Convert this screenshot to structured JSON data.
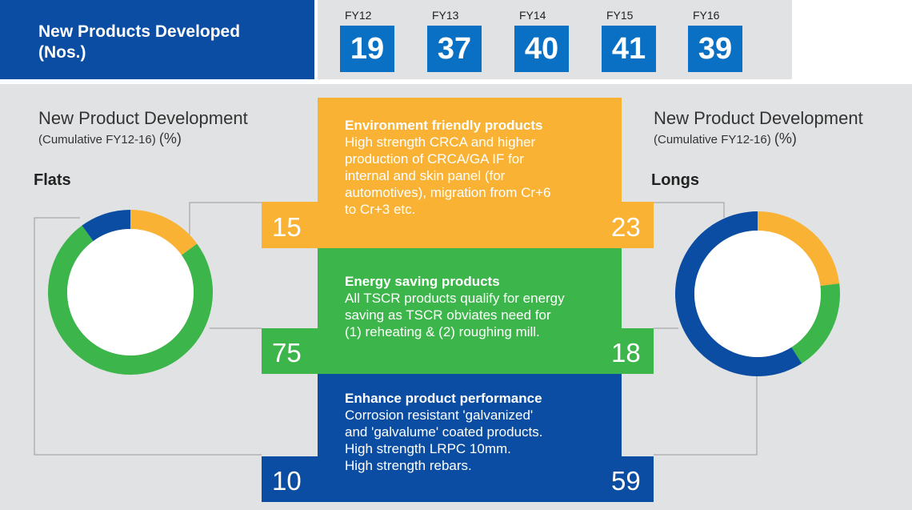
{
  "header": {
    "title_line1": "New Products Developed",
    "title_line2": "(Nos.)",
    "years": [
      {
        "label": "FY12",
        "value": "19"
      },
      {
        "label": "FY13",
        "value": "37"
      },
      {
        "label": "FY14",
        "value": "40"
      },
      {
        "label": "FY15",
        "value": "41"
      },
      {
        "label": "FY16",
        "value": "39"
      }
    ]
  },
  "left": {
    "title": "New Product Development",
    "subtitle": "(Cumulative FY12-16)",
    "unit": "(%)",
    "category": "Flats"
  },
  "right": {
    "title": "New Product Development",
    "subtitle": "(Cumulative FY12-16)",
    "unit": "(%)",
    "category": "Longs"
  },
  "bands": [
    {
      "heading": "Environment friendly products",
      "lines": [
        "High strength CRCA and higher",
        "production of CRCA/GA IF for",
        "internal and skin panel (for",
        "automotives), migration from Cr+6",
        "to Cr+3 etc."
      ],
      "flats_value": "15",
      "longs_value": "23"
    },
    {
      "heading": "Energy saving products",
      "lines": [
        "All TSCR products qualify for energy",
        "saving as TSCR obviates need for",
        "(1) reheating & (2) roughing mill."
      ],
      "flats_value": "75",
      "longs_value": "18"
    },
    {
      "heading": "Enhance product performance",
      "lines": [
        "Corrosion resistant 'galvanized'",
        "and 'galvalume' coated products.",
        "High strength LRPC 10mm.",
        "High strength rebars."
      ],
      "flats_value": "10",
      "longs_value": "59"
    }
  ],
  "chart_data": [
    {
      "type": "pie",
      "donut": true,
      "category": "Flats",
      "labels": [
        "Environment friendly products",
        "Energy saving products",
        "Enhance product performance"
      ],
      "values": [
        15,
        75,
        10
      ],
      "colors": [
        "#f9b233",
        "#3cb54a",
        "#0a4da2"
      ]
    },
    {
      "type": "pie",
      "donut": true,
      "category": "Longs",
      "labels": [
        "Environment friendly products",
        "Energy saving products",
        "Enhance product performance"
      ],
      "values": [
        23,
        18,
        59
      ],
      "colors": [
        "#f9b233",
        "#3cb54a",
        "#0a4da2"
      ]
    }
  ],
  "colors": {
    "header_blue": "#0a4da2",
    "year_box_blue": "#0a70c3",
    "orange": "#f9b233",
    "green": "#3cb54a",
    "blue": "#0a4da2",
    "panel_grey": "#e1e2e3"
  }
}
